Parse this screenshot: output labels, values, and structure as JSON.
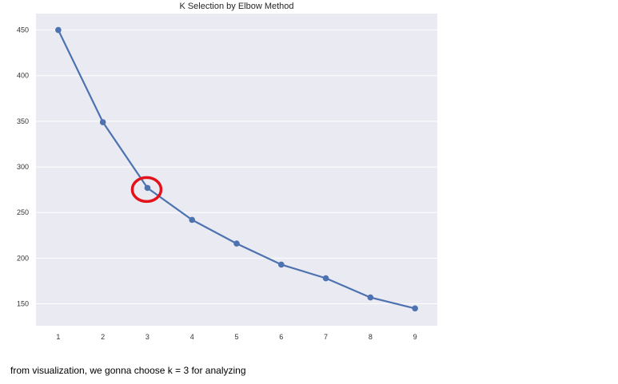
{
  "chart_data": {
    "type": "line",
    "title": "K Selection by Elbow Method",
    "xlabel": "",
    "ylabel": "",
    "x": [
      1,
      2,
      3,
      4,
      5,
      6,
      7,
      8,
      9
    ],
    "series": [
      {
        "values": [
          450,
          349,
          277,
          242,
          216,
          193,
          178,
          157,
          145
        ]
      }
    ],
    "xticks": [
      1,
      2,
      3,
      4,
      5,
      6,
      7,
      8,
      9
    ],
    "yticks": [
      150,
      200,
      250,
      300,
      350,
      400,
      450
    ],
    "xlim": [
      0.5,
      9.5
    ],
    "ylim": [
      126,
      468
    ],
    "grid": true,
    "highlight_x": 3,
    "colors": {
      "line": "#4c72b0",
      "background": "#eaeaf2",
      "grid": "#ffffff",
      "highlight": "#e3121b"
    }
  },
  "caption": "from visualization, we gonna choose k = 3 for analyzing"
}
